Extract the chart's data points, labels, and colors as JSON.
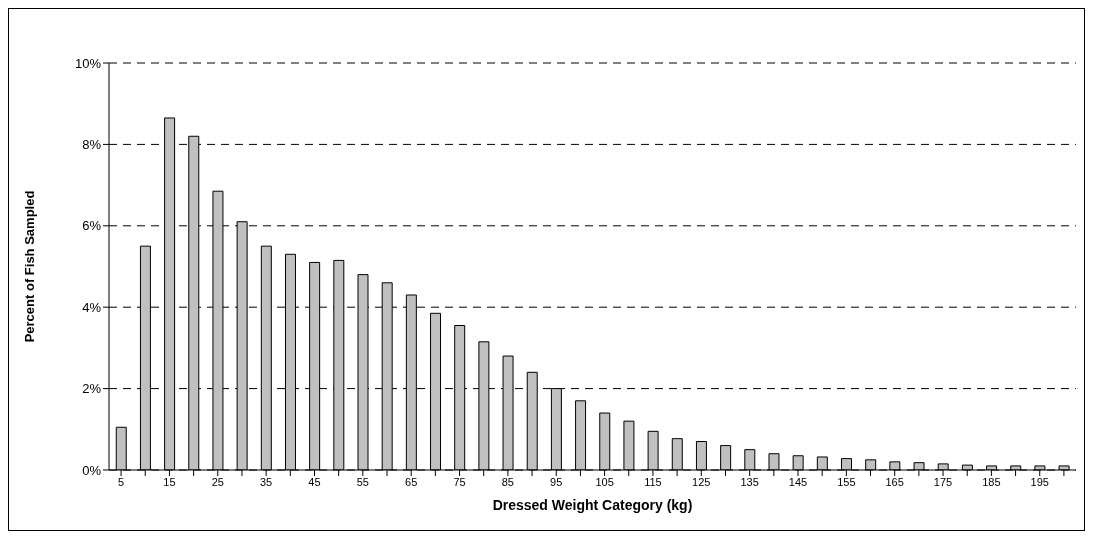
{
  "chart_data": {
    "type": "bar",
    "xlabel": "Dressed Weight Category (kg)",
    "ylabel": "Percent of Fish Sampled",
    "categories": [
      "5",
      null,
      "15",
      null,
      "25",
      null,
      "35",
      null,
      "45",
      null,
      "55",
      null,
      "65",
      null,
      "75",
      null,
      "85",
      null,
      "95",
      null,
      "105",
      null,
      "115",
      null,
      "125",
      null,
      "135",
      null,
      "145",
      null,
      "155",
      null,
      "165",
      null,
      "175",
      null,
      "185",
      null,
      "195",
      null
    ],
    "values": [
      1.05,
      5.5,
      8.65,
      8.2,
      6.85,
      6.1,
      5.5,
      5.3,
      5.1,
      5.15,
      4.8,
      4.6,
      4.3,
      3.85,
      3.55,
      3.15,
      2.8,
      2.4,
      2.0,
      1.7,
      1.4,
      1.2,
      0.95,
      0.77,
      0.7,
      0.6,
      0.5,
      0.4,
      0.35,
      0.32,
      0.28,
      0.25,
      0.2,
      0.18,
      0.15,
      0.12,
      0.1,
      0.1,
      0.1,
      0.1
    ],
    "color": "#c0c0c0",
    "ylim": [
      0,
      10
    ],
    "yticks": [
      {
        "value": 0,
        "label": "0%"
      },
      {
        "value": 2,
        "label": "2%"
      },
      {
        "value": 4,
        "label": "4%"
      },
      {
        "value": 6,
        "label": "6%"
      },
      {
        "value": 8,
        "label": "8%"
      },
      {
        "value": 10,
        "label": "10%"
      }
    ],
    "grid": "y",
    "line_style": "dashed",
    "legend": false
  }
}
